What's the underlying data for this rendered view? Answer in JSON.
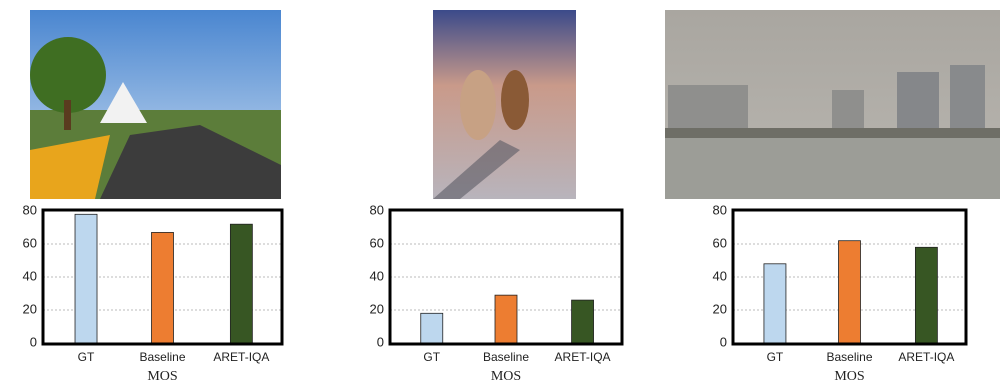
{
  "chart_data": [
    {
      "type": "bar",
      "x_label": "MOS",
      "categories": [
        "GT",
        "Baseline",
        "ARET-IQA"
      ],
      "values": [
        78,
        67,
        72
      ],
      "colors": [
        "#bdd7ee",
        "#ed7d31",
        "#375623"
      ],
      "ylim": [
        0,
        80
      ],
      "yticks": [
        0,
        20,
        40,
        60,
        80
      ],
      "grid": true
    },
    {
      "type": "bar",
      "x_label": "MOS",
      "categories": [
        "GT",
        "Baseline",
        "ARET-IQA"
      ],
      "values": [
        18,
        29,
        26
      ],
      "colors": [
        "#bdd7ee",
        "#ed7d31",
        "#375623"
      ],
      "ylim": [
        0,
        80
      ],
      "yticks": [
        0,
        20,
        40,
        60,
        80
      ],
      "grid": true
    },
    {
      "type": "bar",
      "x_label": "MOS",
      "categories": [
        "GT",
        "Baseline",
        "ARET-IQA"
      ],
      "values": [
        48,
        62,
        58
      ],
      "colors": [
        "#bdd7ee",
        "#ed7d31",
        "#375623"
      ],
      "ylim": [
        0,
        80
      ],
      "yticks": [
        0,
        20,
        40,
        60,
        80
      ],
      "grid": true
    }
  ]
}
